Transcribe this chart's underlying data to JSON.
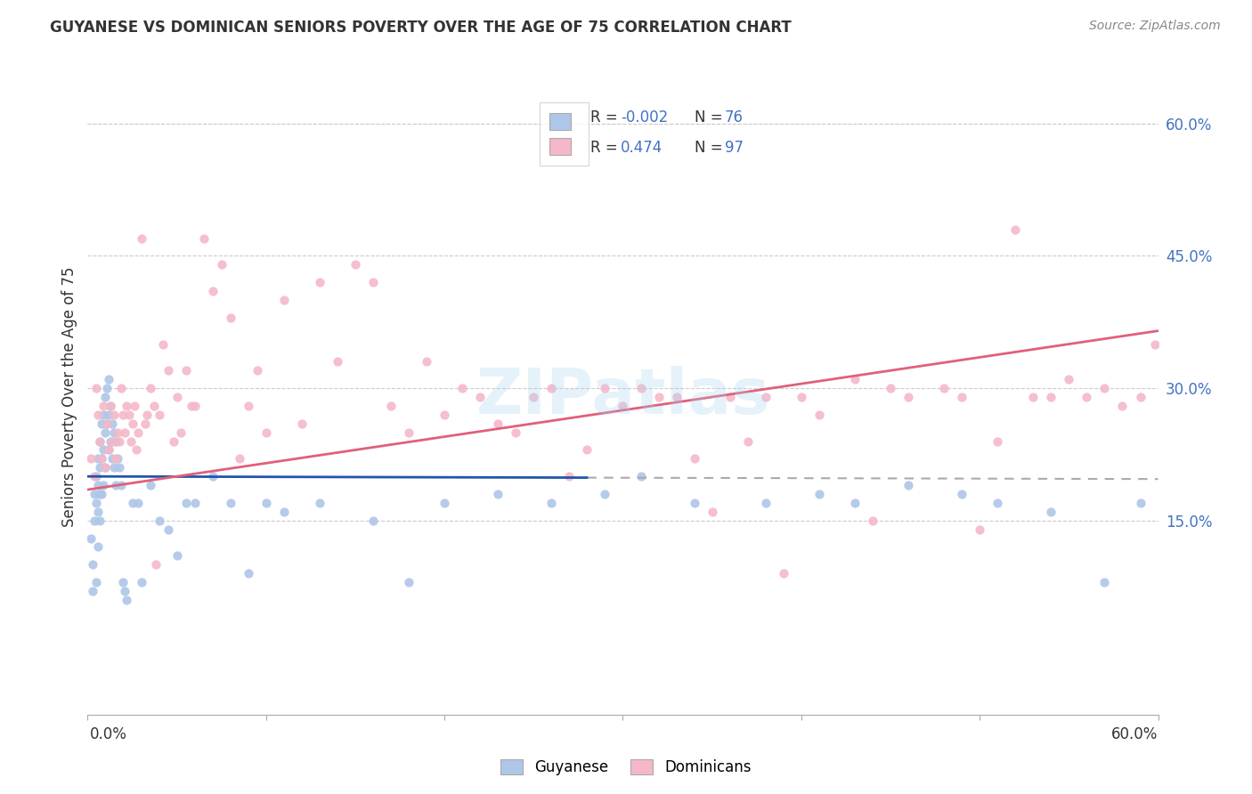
{
  "title": "GUYANESE VS DOMINICAN SENIORS POVERTY OVER THE AGE OF 75 CORRELATION CHART",
  "source": "Source: ZipAtlas.com",
  "ylabel": "Seniors Poverty Over the Age of 75",
  "yticks_right_vals": [
    0.15,
    0.3,
    0.45,
    0.6
  ],
  "xmin": 0.0,
  "xmax": 0.6,
  "ymin": -0.07,
  "ymax": 0.65,
  "blue_color": "#aec6e8",
  "pink_color": "#f4b8c8",
  "blue_line_color": "#2255aa",
  "pink_line_color": "#e0607a",
  "dot_size": 55,
  "blue_R": -0.002,
  "blue_N": 76,
  "pink_R": 0.474,
  "pink_N": 97,
  "blue_intercept": 0.2,
  "blue_slope": -0.005,
  "pink_intercept": 0.185,
  "pink_slope": 0.3,
  "guyanese_x": [
    0.002,
    0.003,
    0.003,
    0.004,
    0.004,
    0.005,
    0.005,
    0.005,
    0.006,
    0.006,
    0.006,
    0.006,
    0.007,
    0.007,
    0.007,
    0.007,
    0.008,
    0.008,
    0.008,
    0.009,
    0.009,
    0.009,
    0.01,
    0.01,
    0.01,
    0.011,
    0.011,
    0.012,
    0.012,
    0.012,
    0.013,
    0.013,
    0.014,
    0.014,
    0.015,
    0.015,
    0.016,
    0.016,
    0.017,
    0.018,
    0.019,
    0.02,
    0.021,
    0.022,
    0.025,
    0.028,
    0.03,
    0.035,
    0.04,
    0.045,
    0.05,
    0.055,
    0.06,
    0.07,
    0.08,
    0.09,
    0.1,
    0.11,
    0.13,
    0.16,
    0.18,
    0.2,
    0.23,
    0.26,
    0.29,
    0.31,
    0.34,
    0.38,
    0.41,
    0.43,
    0.46,
    0.49,
    0.51,
    0.54,
    0.57,
    0.59
  ],
  "guyanese_y": [
    0.13,
    0.1,
    0.07,
    0.18,
    0.15,
    0.2,
    0.17,
    0.08,
    0.22,
    0.19,
    0.16,
    0.12,
    0.24,
    0.21,
    0.18,
    0.15,
    0.26,
    0.22,
    0.18,
    0.27,
    0.23,
    0.19,
    0.29,
    0.25,
    0.21,
    0.3,
    0.26,
    0.31,
    0.27,
    0.23,
    0.28,
    0.24,
    0.26,
    0.22,
    0.25,
    0.21,
    0.24,
    0.19,
    0.22,
    0.21,
    0.19,
    0.08,
    0.07,
    0.06,
    0.17,
    0.17,
    0.08,
    0.19,
    0.15,
    0.14,
    0.11,
    0.17,
    0.17,
    0.2,
    0.17,
    0.09,
    0.17,
    0.16,
    0.17,
    0.15,
    0.08,
    0.17,
    0.18,
    0.17,
    0.18,
    0.2,
    0.17,
    0.17,
    0.18,
    0.17,
    0.19,
    0.18,
    0.17,
    0.16,
    0.08,
    0.17
  ],
  "dominican_x": [
    0.002,
    0.004,
    0.005,
    0.006,
    0.007,
    0.008,
    0.009,
    0.01,
    0.011,
    0.012,
    0.013,
    0.014,
    0.015,
    0.016,
    0.017,
    0.018,
    0.019,
    0.02,
    0.021,
    0.022,
    0.023,
    0.024,
    0.025,
    0.026,
    0.027,
    0.028,
    0.03,
    0.032,
    0.033,
    0.035,
    0.037,
    0.038,
    0.04,
    0.042,
    0.045,
    0.048,
    0.05,
    0.052,
    0.055,
    0.058,
    0.06,
    0.065,
    0.07,
    0.075,
    0.08,
    0.085,
    0.09,
    0.095,
    0.1,
    0.11,
    0.12,
    0.13,
    0.14,
    0.15,
    0.16,
    0.17,
    0.18,
    0.19,
    0.2,
    0.21,
    0.22,
    0.23,
    0.24,
    0.25,
    0.26,
    0.27,
    0.28,
    0.29,
    0.3,
    0.31,
    0.32,
    0.33,
    0.34,
    0.35,
    0.36,
    0.37,
    0.38,
    0.39,
    0.4,
    0.41,
    0.43,
    0.44,
    0.45,
    0.46,
    0.48,
    0.49,
    0.5,
    0.51,
    0.52,
    0.53,
    0.54,
    0.55,
    0.56,
    0.57,
    0.58,
    0.59,
    0.598
  ],
  "dominican_y": [
    0.22,
    0.2,
    0.3,
    0.27,
    0.24,
    0.22,
    0.28,
    0.21,
    0.26,
    0.23,
    0.28,
    0.24,
    0.27,
    0.22,
    0.25,
    0.24,
    0.3,
    0.27,
    0.25,
    0.28,
    0.27,
    0.24,
    0.26,
    0.28,
    0.23,
    0.25,
    0.47,
    0.26,
    0.27,
    0.3,
    0.28,
    0.1,
    0.27,
    0.35,
    0.32,
    0.24,
    0.29,
    0.25,
    0.32,
    0.28,
    0.28,
    0.47,
    0.41,
    0.44,
    0.38,
    0.22,
    0.28,
    0.32,
    0.25,
    0.4,
    0.26,
    0.42,
    0.33,
    0.44,
    0.42,
    0.28,
    0.25,
    0.33,
    0.27,
    0.3,
    0.29,
    0.26,
    0.25,
    0.29,
    0.3,
    0.2,
    0.23,
    0.3,
    0.28,
    0.3,
    0.29,
    0.29,
    0.22,
    0.16,
    0.29,
    0.24,
    0.29,
    0.09,
    0.29,
    0.27,
    0.31,
    0.15,
    0.3,
    0.29,
    0.3,
    0.29,
    0.14,
    0.24,
    0.48,
    0.29,
    0.29,
    0.31,
    0.29,
    0.3,
    0.28,
    0.29,
    0.35
  ]
}
